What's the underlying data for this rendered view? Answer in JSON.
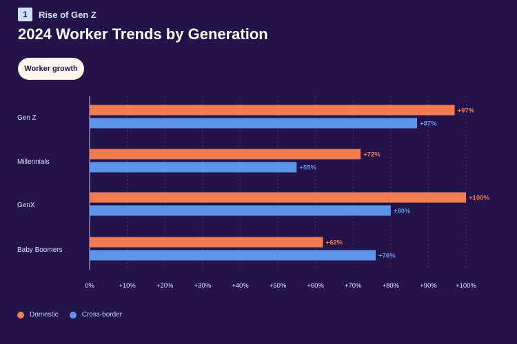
{
  "header": {
    "badge_number": "1",
    "section_title": "Rise of Gen Z",
    "title": "2024 Worker Trends by Generation",
    "pill_label": "Worker growth"
  },
  "colors": {
    "background": "#23134b",
    "domestic": "#ef7d4f",
    "cross_border": "#5d96e8",
    "grid": "#4d4180",
    "axis": "#c9c4ea",
    "text": "#e7e3ff"
  },
  "chart_data": {
    "type": "bar",
    "orientation": "horizontal",
    "title": "2024 Worker Trends by Generation",
    "subtitle": "Worker growth",
    "xlabel": "",
    "ylabel": "",
    "xlim": [
      0,
      100
    ],
    "grid": true,
    "categories": [
      "Gen Z",
      "Millennials",
      "GenX",
      "Baby Boomers"
    ],
    "ticks": [
      "0%",
      "+10%",
      "+20%",
      "+30%",
      "+40%",
      "+50%",
      "+60%",
      "+70%",
      "+80%",
      "+90%",
      "+100%"
    ],
    "series": [
      {
        "name": "Domestic",
        "values": [
          97,
          72,
          100,
          62
        ],
        "labels": [
          "+97%",
          "+72%",
          "+100%",
          "+62%"
        ]
      },
      {
        "name": "Cross-border",
        "values": [
          87,
          55,
          80,
          76
        ],
        "labels": [
          "+87%",
          "+55%",
          "+80%",
          "+76%"
        ]
      }
    ],
    "legend_position": "bottom-left"
  },
  "legend": {
    "items": [
      {
        "label": "Domestic"
      },
      {
        "label": "Cross-border"
      }
    ]
  }
}
